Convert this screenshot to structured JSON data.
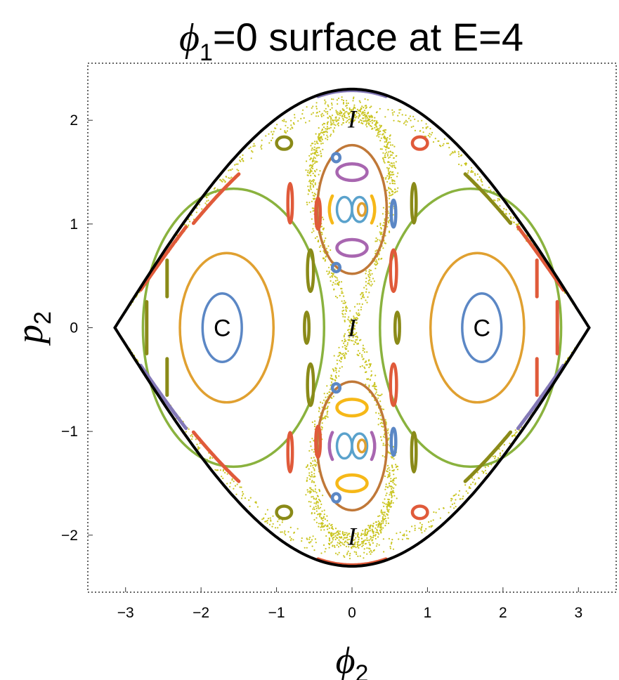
{
  "chart_data": {
    "type": "scatter",
    "title": {
      "phi": "ϕ",
      "sub": "1",
      "rest": "=0 surface at E=4"
    },
    "xlabel": {
      "symbol": "ϕ",
      "sub": "2"
    },
    "ylabel": {
      "symbol": "p",
      "sub": "2"
    },
    "xlim": [
      -3.5,
      3.5
    ],
    "ylim": [
      -2.55,
      2.55
    ],
    "x_ticks": [
      {
        "v": -3,
        "label": "−3"
      },
      {
        "v": -2,
        "label": "−2"
      },
      {
        "v": -1,
        "label": "−1"
      },
      {
        "v": 0,
        "label": "0"
      },
      {
        "v": 1,
        "label": "1"
      },
      {
        "v": 2,
        "label": "2"
      },
      {
        "v": 3,
        "label": "3"
      }
    ],
    "y_ticks": [
      {
        "v": -2,
        "label": "−2"
      },
      {
        "v": -1,
        "label": "−1"
      },
      {
        "v": 0,
        "label": "0"
      },
      {
        "v": 1,
        "label": "1"
      },
      {
        "v": 2,
        "label": "2"
      }
    ],
    "grid": false,
    "colors": {
      "boundary": "#000000",
      "chaotic": "#c9c41f",
      "blue": "#5b87c5",
      "orange": "#e0a030",
      "green": "#8ab23e",
      "red": "#e05a3a",
      "purple": "#8479b8",
      "olive": "#8a8a18",
      "violet": "#a866b0",
      "brown": "#c07838",
      "yellow": "#f6b818",
      "cyan": "#5aa2cc"
    },
    "annotations": [
      {
        "label": "C",
        "x": -1.72,
        "y": 0.0,
        "style": "plain"
      },
      {
        "label": "C",
        "x": 1.72,
        "y": 0.0,
        "style": "plain"
      },
      {
        "label": "I",
        "x": 0.0,
        "y": 2.01,
        "style": "italic"
      },
      {
        "label": "I",
        "x": 0.0,
        "y": 0.0,
        "style": "italic"
      },
      {
        "label": "I",
        "x": 0.0,
        "y": -2.01,
        "style": "italic"
      }
    ],
    "series": [
      {
        "kind": "boundary",
        "color": "boundary",
        "phi_max": 3.14159,
        "p_max": 2.3
      },
      {
        "kind": "ring",
        "color": "blue",
        "cx": -1.72,
        "cy": 0.0,
        "rx": 0.26,
        "ry": 0.33
      },
      {
        "kind": "ring",
        "color": "blue",
        "cx": 1.72,
        "cy": 0.0,
        "rx": 0.26,
        "ry": 0.33
      },
      {
        "kind": "ring",
        "color": "orange",
        "cx": -1.66,
        "cy": 0.0,
        "rx": 0.62,
        "ry": 0.72
      },
      {
        "kind": "ring",
        "color": "orange",
        "cx": 1.66,
        "cy": 0.0,
        "rx": 0.62,
        "ry": 0.72
      },
      {
        "kind": "ring",
        "color": "green",
        "cx": -1.57,
        "cy": 0.0,
        "rx": 1.2,
        "ry": 1.34
      },
      {
        "kind": "ring",
        "color": "green",
        "cx": 1.57,
        "cy": 0.0,
        "rx": 1.2,
        "ry": 1.34
      },
      {
        "kind": "ring",
        "color": "brown",
        "cx": 0.0,
        "cy": 1.14,
        "rx": 0.46,
        "ry": 0.62
      },
      {
        "kind": "ring",
        "color": "brown",
        "cx": 0.0,
        "cy": -1.14,
        "rx": 0.46,
        "ry": 0.62
      },
      {
        "kind": "ring",
        "color": "cyan",
        "cx": -0.1,
        "cy": 1.14,
        "rx": 0.1,
        "ry": 0.12
      },
      {
        "kind": "ring",
        "color": "cyan",
        "cx": 0.1,
        "cy": 1.14,
        "rx": 0.1,
        "ry": 0.12
      },
      {
        "kind": "ring",
        "color": "cyan",
        "cx": -0.1,
        "cy": -1.14,
        "rx": 0.1,
        "ry": 0.12
      },
      {
        "kind": "ring",
        "color": "cyan",
        "cx": 0.1,
        "cy": -1.14,
        "rx": 0.1,
        "ry": 0.12
      },
      {
        "kind": "ring",
        "color": "orange",
        "cx": 0.13,
        "cy": 1.14,
        "rx": 0.05,
        "ry": 0.06
      },
      {
        "kind": "ring",
        "color": "orange",
        "cx": 0.13,
        "cy": -1.14,
        "rx": 0.05,
        "ry": 0.06
      },
      {
        "kind": "blob",
        "color": "violet",
        "cx": 0.0,
        "cy": 1.5,
        "rx": 0.2,
        "ry": 0.08
      },
      {
        "kind": "blob",
        "color": "violet",
        "cx": 0.0,
        "cy": 0.77,
        "rx": 0.2,
        "ry": 0.08
      },
      {
        "kind": "blob",
        "color": "yellow",
        "cx": 0.0,
        "cy": -0.77,
        "rx": 0.2,
        "ry": 0.08
      },
      {
        "kind": "blob",
        "color": "yellow",
        "cx": 0.0,
        "cy": -1.5,
        "rx": 0.2,
        "ry": 0.08
      },
      {
        "kind": "arc",
        "color": "yellow",
        "cx": 0.0,
        "cy": 1.14,
        "rx": 0.3,
        "ry": 0.26,
        "a0": 150,
        "a1": 210
      },
      {
        "kind": "arc",
        "color": "yellow",
        "cx": 0.0,
        "cy": 1.14,
        "rx": 0.3,
        "ry": 0.26,
        "a0": -30,
        "a1": 30
      },
      {
        "kind": "arc",
        "color": "violet",
        "cx": 0.0,
        "cy": -1.14,
        "rx": 0.3,
        "ry": 0.26,
        "a0": 150,
        "a1": 210
      },
      {
        "kind": "arc",
        "color": "violet",
        "cx": 0.0,
        "cy": -1.14,
        "rx": 0.3,
        "ry": 0.26,
        "a0": -30,
        "a1": 30
      },
      {
        "kind": "blob",
        "color": "blue",
        "cx": -0.21,
        "cy": 1.64,
        "rx": 0.05,
        "ry": 0.04
      },
      {
        "kind": "blob",
        "color": "blue",
        "cx": -0.21,
        "cy": 0.58,
        "rx": 0.05,
        "ry": 0.04
      },
      {
        "kind": "blob",
        "color": "blue",
        "cx": -0.21,
        "cy": -0.58,
        "rx": 0.05,
        "ry": 0.04
      },
      {
        "kind": "blob",
        "color": "blue",
        "cx": -0.21,
        "cy": -1.64,
        "rx": 0.05,
        "ry": 0.04
      },
      {
        "kind": "blob",
        "color": "blue",
        "cx": 0.55,
        "cy": 1.1,
        "rx": 0.03,
        "ry": 0.13
      },
      {
        "kind": "blob",
        "color": "blue",
        "cx": 0.55,
        "cy": -1.1,
        "rx": 0.03,
        "ry": 0.13
      },
      {
        "kind": "blob",
        "color": "olive",
        "cx": -0.9,
        "cy": 1.78,
        "rx": 0.1,
        "ry": 0.06
      },
      {
        "kind": "blob",
        "color": "red",
        "cx": 0.9,
        "cy": 1.78,
        "rx": 0.1,
        "ry": 0.06
      },
      {
        "kind": "blob",
        "color": "olive",
        "cx": -0.9,
        "cy": -1.78,
        "rx": 0.1,
        "ry": 0.06
      },
      {
        "kind": "blob",
        "color": "red",
        "cx": 0.9,
        "cy": -1.78,
        "rx": 0.1,
        "ry": 0.06
      },
      {
        "kind": "blob",
        "color": "red",
        "cx": -0.82,
        "cy": 1.2,
        "rx": 0.03,
        "ry": 0.19
      },
      {
        "kind": "blob",
        "color": "olive",
        "cx": 0.82,
        "cy": 1.2,
        "rx": 0.03,
        "ry": 0.19
      },
      {
        "kind": "blob",
        "color": "red",
        "cx": -0.82,
        "cy": -1.2,
        "rx": 0.03,
        "ry": 0.19
      },
      {
        "kind": "blob",
        "color": "olive",
        "cx": 0.82,
        "cy": -1.2,
        "rx": 0.03,
        "ry": 0.19
      },
      {
        "kind": "blob",
        "color": "olive",
        "cx": -0.55,
        "cy": 0.55,
        "rx": 0.04,
        "ry": 0.2
      },
      {
        "kind": "blob",
        "color": "red",
        "cx": 0.55,
        "cy": 0.55,
        "rx": 0.04,
        "ry": 0.2
      },
      {
        "kind": "blob",
        "color": "olive",
        "cx": -0.55,
        "cy": -0.55,
        "rx": 0.04,
        "ry": 0.2
      },
      {
        "kind": "blob",
        "color": "red",
        "cx": 0.55,
        "cy": -0.55,
        "rx": 0.04,
        "ry": 0.2
      },
      {
        "kind": "blob",
        "color": "red",
        "cx": -0.45,
        "cy": 1.1,
        "rx": 0.03,
        "ry": 0.15
      },
      {
        "kind": "blob",
        "color": "red",
        "cx": -0.45,
        "cy": -1.1,
        "rx": 0.03,
        "ry": 0.15
      },
      {
        "kind": "blob",
        "color": "olive",
        "cx": -0.6,
        "cy": 0.0,
        "rx": 0.03,
        "ry": 0.15
      },
      {
        "kind": "blob",
        "color": "olive",
        "cx": 0.6,
        "cy": 0.0,
        "rx": 0.03,
        "ry": 0.15
      },
      {
        "kind": "offset",
        "color": "purple",
        "shrink": 0.995,
        "side": "top",
        "x0": -0.45,
        "x1": 0.45
      },
      {
        "kind": "offset",
        "color": "red",
        "shrink": 0.995,
        "side": "bottom",
        "x0": -0.45,
        "x1": 0.45
      },
      {
        "kind": "offset",
        "color": "red",
        "shrink": 0.93,
        "side": "top",
        "x0": -2.8,
        "x1": -2.2
      },
      {
        "kind": "offset",
        "color": "red",
        "shrink": 0.93,
        "side": "top",
        "x0": 2.2,
        "x1": 2.8
      },
      {
        "kind": "offset",
        "color": "purple",
        "shrink": 0.93,
        "side": "bottom",
        "x0": -2.8,
        "x1": -2.2
      },
      {
        "kind": "offset",
        "color": "purple",
        "shrink": 0.93,
        "side": "bottom",
        "x0": 2.2,
        "x1": 2.8
      },
      {
        "kind": "offset",
        "color": "red",
        "shrink": 0.88,
        "side": "top",
        "x0": -2.1,
        "x1": -1.5
      },
      {
        "kind": "offset",
        "color": "red",
        "shrink": 0.88,
        "side": "bottom",
        "x0": -2.1,
        "x1": -1.5
      },
      {
        "kind": "offset",
        "color": "olive",
        "shrink": 0.88,
        "side": "top",
        "x0": 1.5,
        "x1": 2.1
      },
      {
        "kind": "offset",
        "color": "olive",
        "shrink": 0.88,
        "side": "bottom",
        "x0": 1.5,
        "x1": 2.1
      },
      {
        "kind": "edge",
        "color": "olive",
        "x": -2.72,
        "y0": -0.25,
        "y1": 0.25
      },
      {
        "kind": "edge",
        "color": "red",
        "x": 2.72,
        "y0": -0.25,
        "y1": 0.25
      },
      {
        "kind": "edge",
        "color": "olive",
        "x": -2.45,
        "y0": 0.3,
        "y1": 0.65
      },
      {
        "kind": "edge",
        "color": "olive",
        "x": -2.45,
        "y0": -0.65,
        "y1": -0.3
      },
      {
        "kind": "edge",
        "color": "red",
        "x": 2.45,
        "y0": 0.3,
        "y1": 0.65
      },
      {
        "kind": "edge",
        "color": "red",
        "x": 2.45,
        "y0": -0.65,
        "y1": -0.3
      },
      {
        "kind": "chaos",
        "color": "chaotic",
        "count": 2600
      }
    ]
  }
}
